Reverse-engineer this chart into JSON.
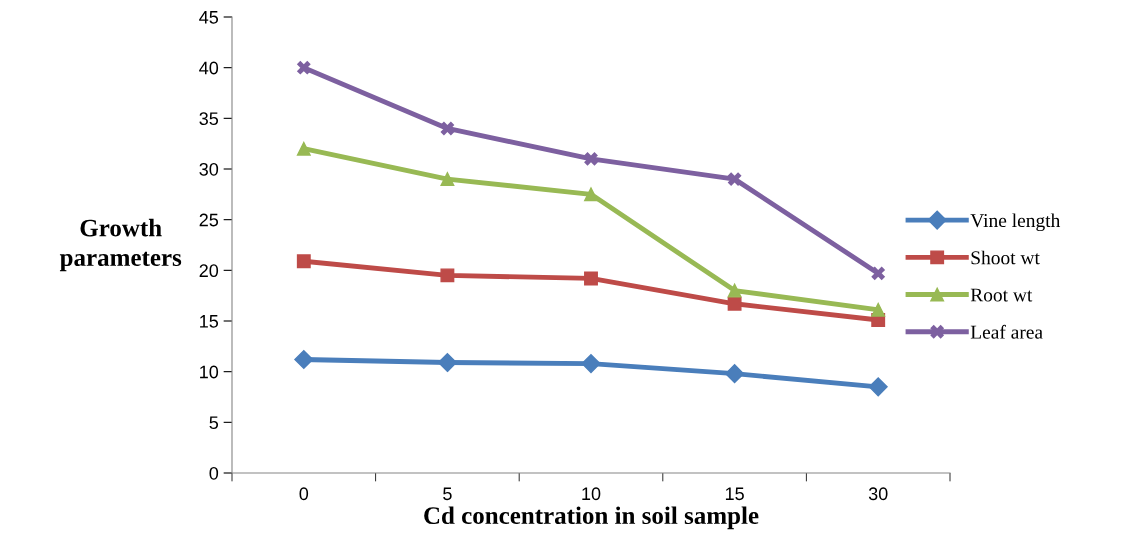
{
  "chart_data": {
    "type": "line",
    "xlabel": "Cd concentration in soil sample",
    "ylabel": "Growth\nparameters",
    "categories": [
      "0",
      "5",
      "10",
      "15",
      "30"
    ],
    "series": [
      {
        "name": "Vine length",
        "color": "#4a7ebb",
        "marker": "diamond",
        "values": [
          11.2,
          10.9,
          10.8,
          9.8,
          8.5
        ]
      },
      {
        "name": "Shoot wt",
        "color": "#be4b48",
        "marker": "square",
        "values": [
          20.9,
          19.5,
          19.2,
          16.7,
          15.1
        ]
      },
      {
        "name": "Root wt",
        "color": "#98b954",
        "marker": "triangle",
        "values": [
          32.0,
          29.0,
          27.5,
          18.0,
          16.1
        ]
      },
      {
        "name": "Leaf area",
        "color": "#7d60a0",
        "marker": "cross",
        "values": [
          40.0,
          34.0,
          31.0,
          29.0,
          19.7
        ]
      }
    ],
    "ylim": [
      0,
      45
    ],
    "yticks": [
      0,
      5,
      10,
      15,
      20,
      25,
      30,
      35,
      40,
      45
    ],
    "grid": false,
    "legend": "right",
    "line_style": "solid"
  }
}
